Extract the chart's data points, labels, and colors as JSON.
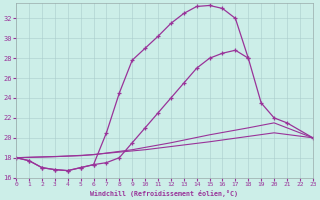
{
  "xlabel": "Windchill (Refroidissement éolien,°C)",
  "background_color": "#cceee8",
  "grid_color": "#aacccc",
  "line_color": "#993399",
  "xlim": [
    0,
    23
  ],
  "ylim": [
    16,
    33.5
  ],
  "xticks": [
    0,
    1,
    2,
    3,
    4,
    5,
    6,
    7,
    8,
    9,
    10,
    11,
    12,
    13,
    14,
    15,
    16,
    17,
    18,
    19,
    20,
    21,
    22,
    23
  ],
  "yticks": [
    16,
    18,
    20,
    22,
    24,
    26,
    28,
    30,
    32
  ],
  "curve_a_x": [
    0,
    1,
    2,
    3,
    4,
    5,
    6,
    7,
    8,
    9,
    10,
    11,
    12,
    13,
    14,
    15,
    16,
    17,
    18
  ],
  "curve_a_y": [
    18.0,
    17.7,
    17.0,
    16.8,
    16.7,
    17.0,
    17.3,
    20.5,
    24.5,
    27.8,
    29.0,
    30.2,
    31.5,
    32.5,
    33.2,
    33.3,
    33.0,
    32.0,
    28.0
  ],
  "curve_b_x": [
    0,
    1,
    2,
    3,
    4,
    5,
    6,
    7,
    8,
    9,
    10,
    11,
    12,
    13,
    14,
    15,
    16,
    17,
    18,
    19,
    20,
    21,
    23
  ],
  "curve_b_y": [
    18.0,
    17.7,
    17.0,
    16.8,
    16.7,
    17.0,
    17.3,
    17.5,
    18.0,
    19.5,
    21.0,
    22.5,
    24.0,
    25.5,
    27.0,
    28.0,
    28.5,
    28.8,
    28.0,
    23.5,
    22.0,
    21.5,
    20.0
  ],
  "curve_c_x": [
    0,
    3,
    6,
    9,
    12,
    15,
    18,
    20,
    23
  ],
  "curve_c_y": [
    18.0,
    18.1,
    18.3,
    18.8,
    19.5,
    20.3,
    21.0,
    21.5,
    20.0
  ],
  "curve_d_x": [
    0,
    5,
    10,
    15,
    20,
    23
  ],
  "curve_d_y": [
    18.0,
    18.2,
    18.8,
    19.6,
    20.5,
    20.0
  ]
}
